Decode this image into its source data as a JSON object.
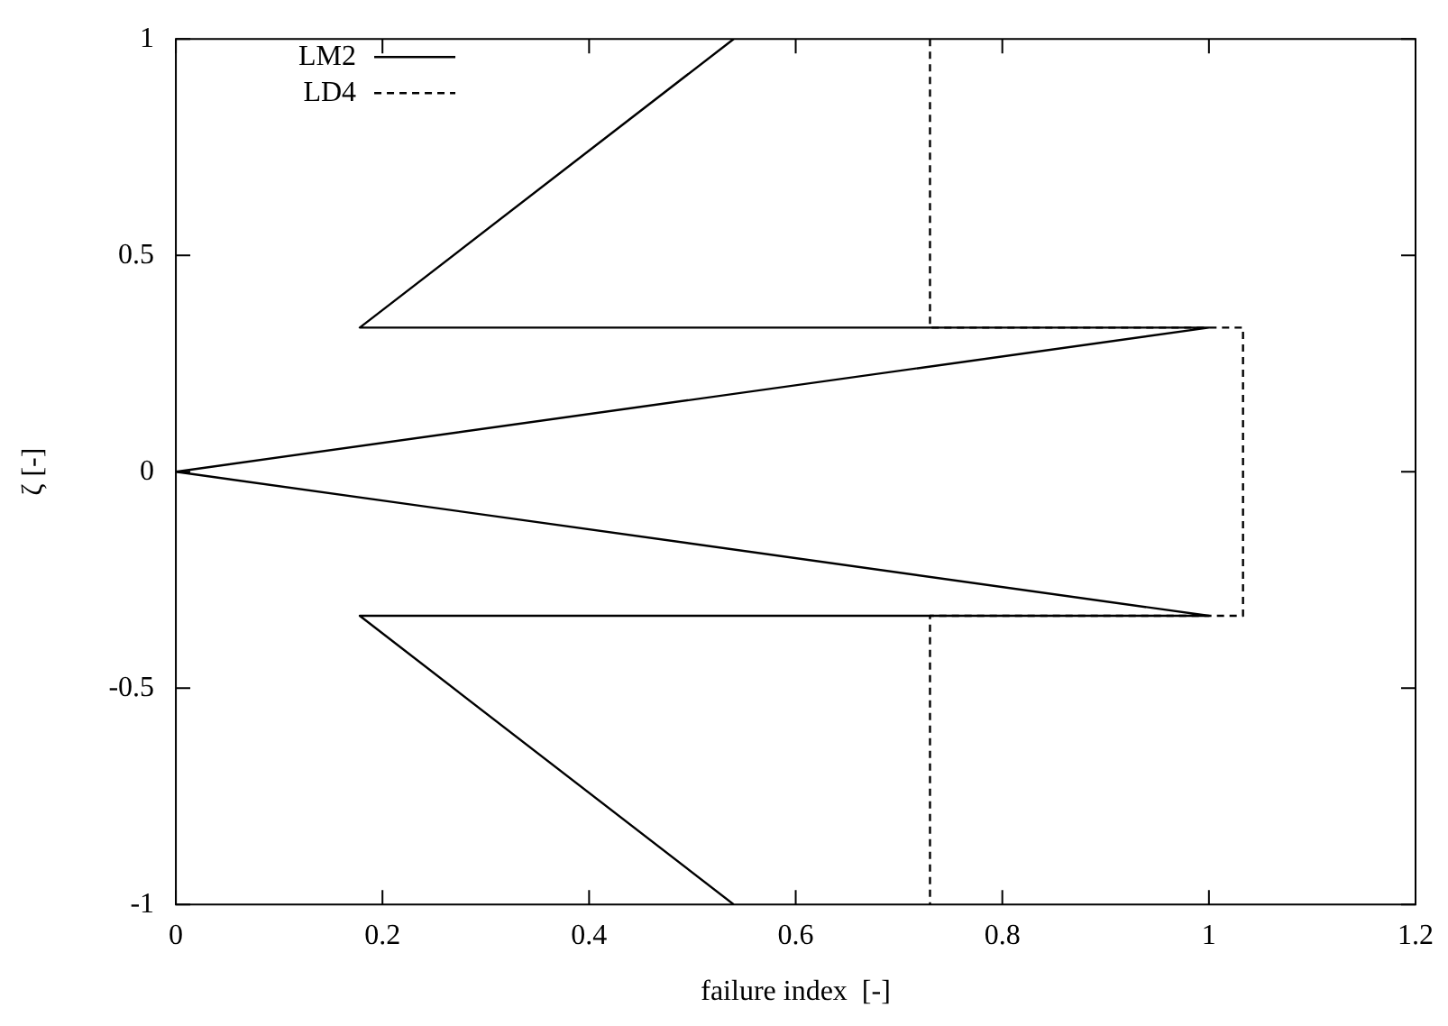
{
  "chart_data": {
    "type": "line",
    "xlabel": "failure index  [-]",
    "ylabel": "ζ [-]",
    "xlim": [
      0,
      1.2
    ],
    "xticks": [
      0,
      0.2,
      0.4,
      0.6,
      0.8,
      1,
      1.2
    ],
    "ylim": [
      -1,
      1
    ],
    "yticks": [
      -1,
      -0.5,
      0,
      0.5,
      1
    ],
    "grid": false,
    "legend": "top left",
    "marker": "none",
    "series": [
      {
        "name": "LM2",
        "color": "#000000",
        "line_style": "solid",
        "x": [
          0.54,
          0.178,
          1.0,
          0,
          1.0,
          0.178,
          0.54
        ],
        "values": [
          1,
          0.333,
          0.333,
          0,
          -0.333,
          -0.333,
          -1
        ]
      },
      {
        "name": "LD4",
        "color": "#000000",
        "line_style": "dashed",
        "x": [
          0.73,
          0.73,
          1.033,
          1.033,
          0.73,
          0.73
        ],
        "values": [
          1,
          0.333,
          0.333,
          -0.333,
          -0.333,
          -1
        ]
      }
    ]
  }
}
